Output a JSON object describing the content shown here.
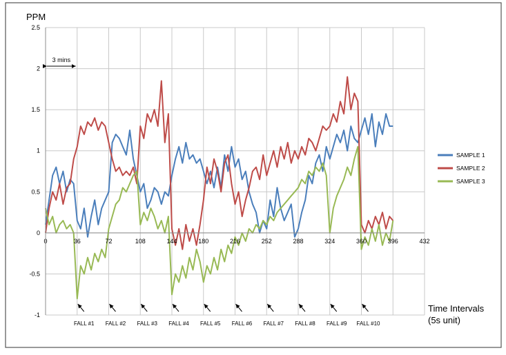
{
  "chart_data": {
    "type": "line",
    "ylabel": "PPM",
    "xlabel_lines": [
      "Time Intervals",
      "(5s unit)"
    ],
    "ylim": [
      -1,
      2.5
    ],
    "yticks": [
      "2.5",
      "2",
      "1.5",
      "1",
      "0.5",
      "0",
      "-0.5",
      "-1"
    ],
    "xlim": [
      0,
      432
    ],
    "xticks": [
      "0",
      "36",
      "72",
      "108",
      "144",
      "180",
      "216",
      "252",
      "288",
      "324",
      "360",
      "396",
      "432"
    ],
    "legend_position": "right",
    "grid": true,
    "annotation_span": {
      "label": "3 mins",
      "x_start": 0,
      "x_end": 36,
      "y": 2.03
    },
    "falls": [
      {
        "label": "FALL #1",
        "x": 36
      },
      {
        "label": "FALL #2",
        "x": 72
      },
      {
        "label": "FALL #3",
        "x": 108
      },
      {
        "label": "FALL #4",
        "x": 144
      },
      {
        "label": "FALL #5",
        "x": 180
      },
      {
        "label": "FALL #6",
        "x": 216
      },
      {
        "label": "FALL #7",
        "x": 252
      },
      {
        "label": "FALL #8",
        "x": 288
      },
      {
        "label": "FALL #9",
        "x": 324
      },
      {
        "label": "FALL #10",
        "x": 360
      }
    ],
    "series": [
      {
        "name": "SAMPLE 1",
        "color": "#4A7EBB",
        "x": [
          0,
          4,
          8,
          12,
          16,
          20,
          24,
          28,
          32,
          36,
          40,
          44,
          48,
          52,
          56,
          60,
          64,
          68,
          72,
          76,
          80,
          84,
          88,
          92,
          96,
          100,
          104,
          108,
          112,
          116,
          120,
          124,
          128,
          132,
          136,
          140,
          144,
          148,
          152,
          156,
          160,
          164,
          168,
          172,
          176,
          180,
          184,
          188,
          192,
          196,
          200,
          204,
          208,
          212,
          216,
          220,
          224,
          228,
          232,
          236,
          240,
          244,
          248,
          252,
          256,
          260,
          264,
          268,
          272,
          276,
          280,
          284,
          288,
          292,
          296,
          300,
          304,
          308,
          312,
          316,
          320,
          324,
          328,
          332,
          336,
          340,
          344,
          348,
          352,
          356,
          360,
          364,
          368,
          372,
          376,
          380,
          384,
          388,
          392,
          396
        ],
        "values": [
          0.1,
          0.4,
          0.7,
          0.8,
          0.6,
          0.75,
          0.5,
          0.65,
          0.6,
          0.15,
          0.05,
          0.3,
          -0.05,
          0.2,
          0.4,
          0.1,
          0.3,
          0.4,
          0.5,
          1.1,
          1.2,
          1.15,
          1.05,
          0.95,
          1.25,
          0.9,
          0.7,
          0.5,
          0.6,
          0.3,
          0.4,
          0.55,
          0.5,
          0.35,
          0.5,
          0.45,
          0.7,
          0.9,
          1.05,
          0.85,
          1.1,
          0.9,
          0.95,
          0.85,
          0.9,
          0.75,
          0.6,
          0.75,
          0.55,
          0.8,
          0.55,
          0.95,
          0.75,
          1.05,
          0.8,
          0.9,
          0.65,
          0.75,
          0.5,
          0.35,
          0.25,
          0.0,
          0.15,
          0.05,
          0.4,
          0.2,
          0.55,
          0.3,
          0.15,
          0.25,
          0.35,
          -0.05,
          0.05,
          0.25,
          0.4,
          0.7,
          0.6,
          0.85,
          0.95,
          0.75,
          1.05,
          0.9,
          1.05,
          1.2,
          1.1,
          1.25,
          1.0,
          1.3,
          1.15,
          1.1,
          1.25,
          1.4,
          1.2,
          1.45,
          1.05,
          1.35,
          1.2,
          1.45,
          1.3,
          1.3
        ]
      },
      {
        "name": "SAMPLE 2",
        "color": "#BE4B48",
        "x": [
          0,
          4,
          8,
          12,
          16,
          20,
          24,
          28,
          32,
          36,
          40,
          44,
          48,
          52,
          56,
          60,
          64,
          68,
          72,
          76,
          80,
          84,
          88,
          92,
          96,
          100,
          104,
          108,
          112,
          116,
          120,
          124,
          128,
          132,
          136,
          140,
          144,
          148,
          152,
          156,
          160,
          164,
          168,
          172,
          176,
          180,
          184,
          188,
          192,
          196,
          200,
          204,
          208,
          212,
          216,
          220,
          224,
          228,
          232,
          236,
          240,
          244,
          248,
          252,
          256,
          260,
          264,
          268,
          272,
          276,
          280,
          284,
          288,
          292,
          296,
          300,
          304,
          308,
          312,
          316,
          320,
          324,
          328,
          332,
          336,
          340,
          344,
          348,
          352,
          356,
          360,
          364,
          368,
          372,
          376,
          380,
          384,
          388,
          392,
          396
        ],
        "values": [
          0.0,
          0.3,
          0.5,
          0.4,
          0.6,
          0.35,
          0.55,
          0.6,
          0.9,
          1.05,
          1.3,
          1.2,
          1.35,
          1.3,
          1.4,
          1.25,
          1.35,
          1.3,
          1.1,
          0.9,
          0.75,
          0.8,
          0.7,
          0.75,
          0.7,
          0.8,
          0.6,
          1.3,
          1.15,
          1.45,
          1.35,
          1.5,
          1.3,
          1.85,
          1.1,
          1.45,
          0.05,
          -0.15,
          0.05,
          -0.2,
          0.1,
          -0.1,
          0.05,
          -0.15,
          0.1,
          0.4,
          0.8,
          0.6,
          0.9,
          0.75,
          0.5,
          0.85,
          0.95,
          0.6,
          0.35,
          0.5,
          0.2,
          0.4,
          0.55,
          0.75,
          0.8,
          0.65,
          0.95,
          0.7,
          0.85,
          1.0,
          0.8,
          1.05,
          0.9,
          1.1,
          0.85,
          1.0,
          0.9,
          1.05,
          0.95,
          1.15,
          1.1,
          1.0,
          1.15,
          1.3,
          1.25,
          1.3,
          1.45,
          1.35,
          1.6,
          1.45,
          1.9,
          1.5,
          1.7,
          1.6,
          0.1,
          0.0,
          0.15,
          0.05,
          0.2,
          0.1,
          0.25,
          0.05,
          0.2,
          0.15
        ]
      },
      {
        "name": "SAMPLE 3",
        "color": "#98B954",
        "x": [
          0,
          4,
          8,
          12,
          16,
          20,
          24,
          28,
          32,
          36,
          40,
          44,
          48,
          52,
          56,
          60,
          64,
          68,
          72,
          76,
          80,
          84,
          88,
          92,
          96,
          100,
          104,
          108,
          112,
          116,
          120,
          124,
          128,
          132,
          136,
          140,
          144,
          148,
          152,
          156,
          160,
          164,
          168,
          172,
          176,
          180,
          184,
          188,
          192,
          196,
          200,
          204,
          208,
          212,
          216,
          220,
          224,
          228,
          232,
          236,
          240,
          244,
          248,
          252,
          256,
          260,
          264,
          268,
          272,
          276,
          280,
          284,
          288,
          292,
          296,
          300,
          304,
          308,
          312,
          316,
          320,
          324,
          328,
          332,
          336,
          340,
          344,
          348,
          352,
          356,
          360,
          364,
          368,
          372,
          376,
          380,
          384,
          388,
          392,
          396
        ],
        "values": [
          0.3,
          0.1,
          0.2,
          0.0,
          0.1,
          0.15,
          0.05,
          0.1,
          0.0,
          -0.8,
          -0.4,
          -0.5,
          -0.3,
          -0.45,
          -0.25,
          -0.35,
          -0.2,
          -0.3,
          0.05,
          0.2,
          0.35,
          0.4,
          0.55,
          0.5,
          0.6,
          0.7,
          0.75,
          0.1,
          0.25,
          0.15,
          0.3,
          0.2,
          0.05,
          0.15,
          0.0,
          0.2,
          -0.75,
          -0.5,
          -0.6,
          -0.4,
          -0.55,
          -0.3,
          -0.45,
          -0.2,
          -0.35,
          -0.6,
          -0.4,
          -0.5,
          -0.3,
          -0.45,
          -0.2,
          -0.35,
          -0.15,
          -0.25,
          -0.05,
          -0.15,
          0.0,
          -0.1,
          0.05,
          0.0,
          0.1,
          0.05,
          0.15,
          0.1,
          0.2,
          0.15,
          0.25,
          0.3,
          0.35,
          0.4,
          0.45,
          0.5,
          0.55,
          0.65,
          0.6,
          0.75,
          0.7,
          0.8,
          0.75,
          0.85,
          0.7,
          0.0,
          0.3,
          0.45,
          0.55,
          0.65,
          0.8,
          0.7,
          0.9,
          1.05,
          -0.2,
          -0.05,
          -0.15,
          0.05,
          -0.1,
          0.1,
          -0.15,
          0.0,
          -0.1,
          0.15
        ]
      }
    ]
  }
}
